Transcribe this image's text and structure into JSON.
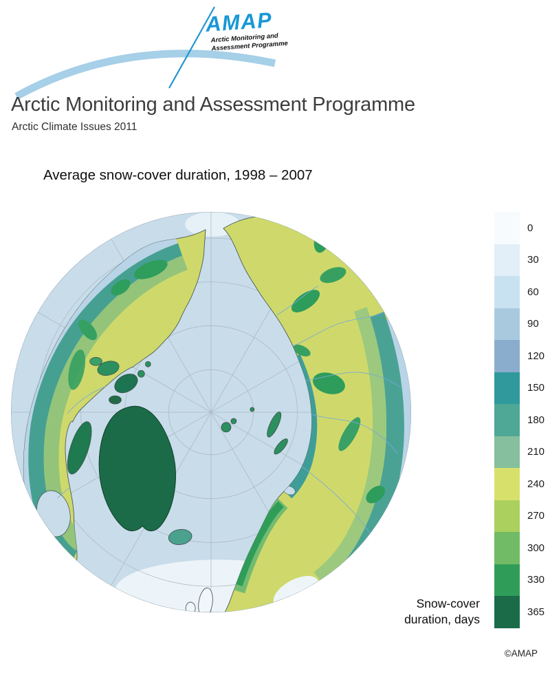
{
  "brand": {
    "logo_text": "AMAP",
    "logo_line1": "Arctic Monitoring and",
    "logo_line2": "Assessment Programme",
    "accent_blue": "#1798d5",
    "arc_blue": "#a6cfe8"
  },
  "header": {
    "title": "Arctic Monitoring and Assessment Programme",
    "subtitle": "Arctic Climate Issues 2011"
  },
  "figure": {
    "title": "Average snow-cover duration, 1998 – 2007",
    "caption_line1": "Snow-cover",
    "caption_line2": "duration, days",
    "copyright": "©AMAP",
    "ocean_color": "#c8dcea"
  },
  "legend": {
    "entries": [
      {
        "label": "0",
        "color": "#f7fbfd"
      },
      {
        "label": "30",
        "color": "#e2eff8"
      },
      {
        "label": "60",
        "color": "#c9e2f1"
      },
      {
        "label": "90",
        "color": "#a9cade"
      },
      {
        "label": "120",
        "color": "#8aadcd"
      },
      {
        "label": "150",
        "color": "#2f999b"
      },
      {
        "label": "180",
        "color": "#4fa795"
      },
      {
        "label": "210",
        "color": "#86bf9d"
      },
      {
        "label": "240",
        "color": "#d8e06c"
      },
      {
        "label": "270",
        "color": "#abd05e"
      },
      {
        "label": "300",
        "color": "#72bb66"
      },
      {
        "label": "330",
        "color": "#2f9d58"
      },
      {
        "label": "365",
        "color": "#1b6b48"
      }
    ]
  },
  "chart_data": {
    "type": "heatmap",
    "title": "Average snow-cover duration, 1998 – 2007",
    "units": "days",
    "projection": "north-polar circumpolar map",
    "scale_values": [
      0,
      30,
      60,
      90,
      120,
      150,
      180,
      210,
      240,
      270,
      300,
      330,
      365
    ],
    "scale_colors": [
      "#f7fbfd",
      "#e2eff8",
      "#c9e2f1",
      "#a9cade",
      "#8aadcd",
      "#2f999b",
      "#4fa795",
      "#86bf9d",
      "#d8e06c",
      "#abd05e",
      "#72bb66",
      "#2f9d58",
      "#1b6b48"
    ]
  }
}
